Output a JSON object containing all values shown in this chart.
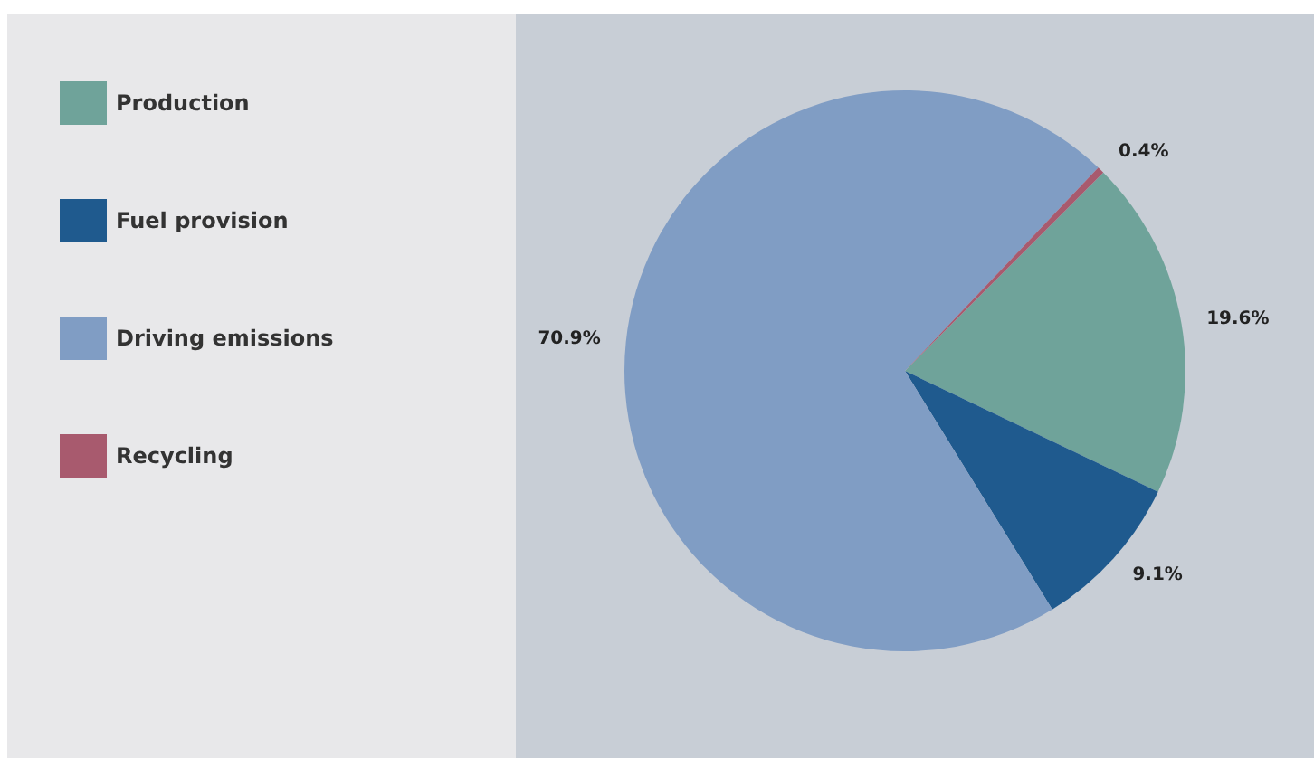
{
  "chart_data": {
    "type": "pie",
    "categories": [
      "Production",
      "Fuel provision",
      "Driving emissions",
      "Recycling"
    ],
    "values": [
      19.6,
      9.1,
      70.9,
      0.4
    ],
    "colors": [
      "#6fa39a",
      "#1f5a8e",
      "#809dc4",
      "#a85a6e"
    ],
    "value_labels": [
      "19.6%",
      "9.1%",
      "70.9%",
      "0.4%"
    ],
    "legend": "left"
  }
}
